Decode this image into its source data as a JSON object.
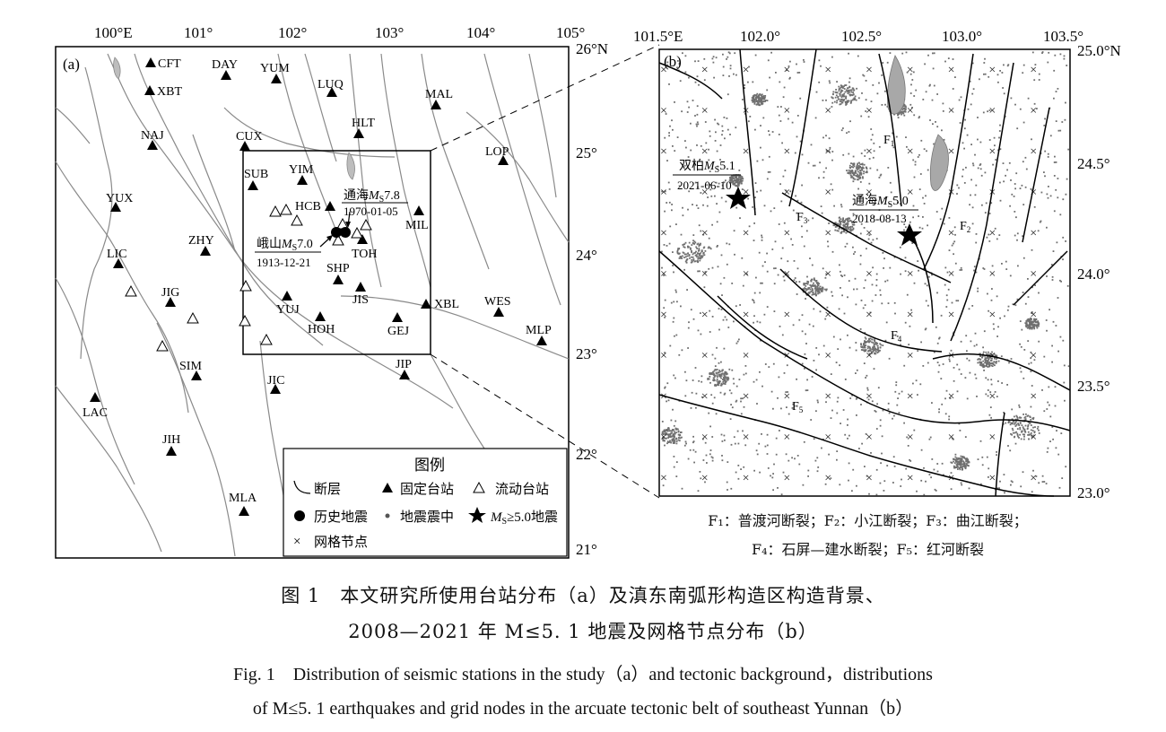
{
  "panel_a": {
    "label": "(a)",
    "lon_ticks": [
      "100°E",
      "101°",
      "102°",
      "103°",
      "104°",
      "105°"
    ],
    "lat_ticks": [
      "26°N",
      "25°",
      "24°",
      "23°",
      "22°",
      "21°"
    ],
    "fixed_stations": [
      "CFT",
      "XBT",
      "DAY",
      "YUM",
      "LUQ",
      "MAL",
      "NAJ",
      "HLT",
      "CUX",
      "LOP",
      "SUB",
      "YIM",
      "YUX",
      "HCB",
      "MIL",
      "TOH",
      "LIC",
      "ZHY",
      "SHP",
      "JIG",
      "JIS",
      "YUJ",
      "XBL",
      "HOH",
      "GEJ",
      "WES",
      "MLP",
      "SIM",
      "JIP",
      "JIC",
      "LAC",
      "JIH",
      "MLA"
    ],
    "historic_quakes": [
      {
        "place": "通海",
        "mag": "7.8",
        "date": "1970-01-05"
      },
      {
        "place": "峨山",
        "mag": "7.0",
        "date": "1913-12-21"
      }
    ],
    "legend": {
      "title": "图例",
      "fault": "断层",
      "fixed_station": "固定台站",
      "mobile_station": "流动台站",
      "historic": "历史地震",
      "epicenter": "地震震中",
      "m5": "≥5.0地震",
      "grid": "网格节点"
    }
  },
  "panel_b": {
    "label": "(b)",
    "lon_ticks": [
      "101.5°E",
      "102.0°",
      "102.5°",
      "103.0°",
      "103.5°"
    ],
    "lat_ticks": [
      "25.0°N",
      "24.5°",
      "24.0°",
      "23.5°",
      "23.0°"
    ],
    "quakes": [
      {
        "place": "双柏",
        "mag": "5.1",
        "date": "2021-06-10"
      },
      {
        "place": "通海",
        "mag": "5.0",
        "date": "2018-08-13"
      }
    ],
    "faults": [
      "F1",
      "F2",
      "F3",
      "F4",
      "F5"
    ]
  },
  "fault_legend": {
    "line1": "F₁：普渡河断裂；F₂：小江断裂；F₃：曲江断裂；",
    "line2": "F₄：石屏—建水断裂；F₅：红河断裂"
  },
  "caption": {
    "zh_line1": "图 1　本文研究所使用台站分布（a）及滇东南弧形构造区构造背景、",
    "zh_line2": "2008—2021 年 M≤5. 1 地震及网格节点分布（b）",
    "en_line1": "Fig. 1　Distribution of seismic stations in the study（a）and tectonic background，distributions",
    "en_line2": "of M≤5. 1 earthquakes and grid nodes in the arcuate tectonic belt of southeast Yunnan（b）"
  }
}
